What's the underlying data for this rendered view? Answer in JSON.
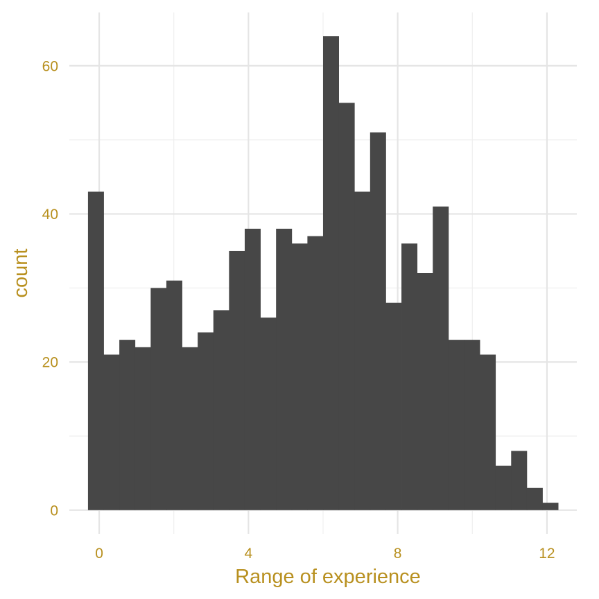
{
  "chart_data": {
    "type": "bar",
    "bin_edges_start": -0.3,
    "bin_width": 0.42,
    "values": [
      43,
      21,
      23,
      22,
      30,
      31,
      22,
      24,
      27,
      35,
      38,
      26,
      38,
      36,
      37,
      64,
      55,
      43,
      51,
      28,
      36,
      32,
      41,
      23,
      23,
      21,
      6,
      8,
      3,
      1
    ],
    "title": "",
    "xlabel": "Range of experience",
    "ylabel": "count",
    "xlim": [
      -0.8,
      12.8
    ],
    "ylim": [
      -3.2,
      67.2
    ],
    "x_ticks": [
      0,
      4,
      8,
      12
    ],
    "y_ticks": [
      0,
      20,
      40,
      60
    ],
    "grid": true,
    "legend": "none",
    "colors": {
      "bar": "#474747",
      "text": "#b8901f",
      "grid": "#e5e5e5",
      "background": "#ffffff"
    }
  }
}
